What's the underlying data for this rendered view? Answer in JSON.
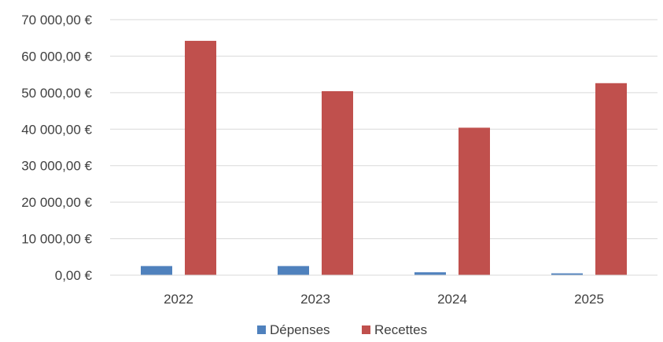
{
  "chart_data": {
    "type": "bar",
    "categories": [
      "2022",
      "2023",
      "2024",
      "2025"
    ],
    "series": [
      {
        "name": "Dépenses",
        "color": "#4f81bd",
        "values": [
          2500,
          2500,
          800,
          500
        ]
      },
      {
        "name": "Recettes",
        "color": "#c0504d",
        "values": [
          64200,
          50400,
          40400,
          52600
        ]
      }
    ],
    "y_ticks": [
      0,
      10000,
      20000,
      30000,
      40000,
      50000,
      60000,
      70000
    ],
    "y_tick_labels": [
      "0,00 €",
      "10 000,00 €",
      "20 000,00 €",
      "30 000,00 €",
      "40 000,00 €",
      "50 000,00 €",
      "60 000,00 €",
      "70 000,00 €"
    ],
    "ylim": [
      0,
      70000
    ],
    "grid": true,
    "legend_position": "bottom"
  }
}
